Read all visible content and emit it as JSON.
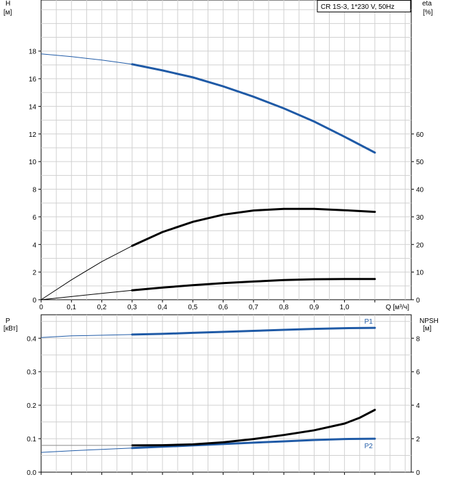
{
  "chart_data": [
    {
      "type": "line",
      "legend": "CR 1S-3, 1*230 V, 50Hz",
      "x_axis": {
        "label": "Q [м³/ч]",
        "ticks": [
          "0",
          "0,1",
          "0,2",
          "0,3",
          "0,4",
          "0,5",
          "0,6",
          "0,7",
          "0,8",
          "0,9",
          "1,0"
        ],
        "range": [
          0,
          1.22
        ]
      },
      "y_left": {
        "label_top": "H",
        "label_unit": "[м]",
        "ticks": [
          "0",
          "2",
          "4",
          "6",
          "8",
          "10",
          "12",
          "14",
          "16",
          "18"
        ],
        "range": [
          0,
          21.7
        ]
      },
      "y_right": {
        "label_top": "eta",
        "label_unit": "[%]",
        "ticks": [
          "0",
          "10",
          "20",
          "30",
          "40",
          "50",
          "60"
        ],
        "range": [
          0,
          108.5
        ]
      },
      "grid": true,
      "series": [
        {
          "axis": "left",
          "color": "#1f5aa6",
          "points": [
            [
              0,
              17.8
            ],
            [
              0.1,
              17.6
            ],
            [
              0.2,
              17.35
            ],
            [
              0.3,
              17.05
            ],
            [
              0.4,
              16.6
            ],
            [
              0.5,
              16.1
            ],
            [
              0.6,
              15.45
            ],
            [
              0.7,
              14.7
            ],
            [
              0.8,
              13.85
            ],
            [
              0.9,
              12.9
            ],
            [
              1.0,
              11.8
            ],
            [
              1.1,
              10.65
            ]
          ],
          "bold_from": 0.3
        },
        {
          "axis": "right",
          "color": "#000000",
          "points": [
            [
              0,
              0
            ],
            [
              0.1,
              7.2
            ],
            [
              0.2,
              13.8
            ],
            [
              0.3,
              19.5
            ],
            [
              0.4,
              24.5
            ],
            [
              0.5,
              28.2
            ],
            [
              0.6,
              30.8
            ],
            [
              0.7,
              32.3
            ],
            [
              0.8,
              32.9
            ],
            [
              0.9,
              32.9
            ],
            [
              1.0,
              32.4
            ],
            [
              1.1,
              31.8
            ]
          ],
          "bold_from": 0.3
        },
        {
          "axis": "left",
          "color": "#000000",
          "points": [
            [
              0,
              0
            ],
            [
              0.1,
              0.23
            ],
            [
              0.2,
              0.46
            ],
            [
              0.3,
              0.68
            ],
            [
              0.4,
              0.88
            ],
            [
              0.5,
              1.05
            ],
            [
              0.6,
              1.2
            ],
            [
              0.7,
              1.32
            ],
            [
              0.8,
              1.42
            ],
            [
              0.9,
              1.48
            ],
            [
              1.0,
              1.5
            ],
            [
              1.1,
              1.5
            ]
          ],
          "bold_from": 0.3
        }
      ]
    },
    {
      "type": "line",
      "x_axis": {
        "ticks": [],
        "range": [
          0,
          1.22
        ]
      },
      "y_left": {
        "label_top": "P",
        "label_unit": "[кВт]",
        "ticks": [
          "0.0",
          "0.1",
          "0.2",
          "0.3",
          "0.4"
        ],
        "range": [
          0,
          0.47
        ]
      },
      "y_right": {
        "label_top": "NPSH",
        "label_unit": "[м]",
        "ticks": [
          "0",
          "2",
          "4",
          "6",
          "8"
        ],
        "range": [
          0,
          9.4
        ]
      },
      "grid": true,
      "series": [
        {
          "name": "P1",
          "axis": "left",
          "color": "#1f5aa6",
          "points": [
            [
              0,
              0.402
            ],
            [
              0.1,
              0.407
            ],
            [
              0.2,
              0.409
            ],
            [
              0.3,
              0.411
            ],
            [
              0.4,
              0.413
            ],
            [
              0.5,
              0.416
            ],
            [
              0.6,
              0.419
            ],
            [
              0.7,
              0.422
            ],
            [
              0.8,
              0.425
            ],
            [
              0.9,
              0.428
            ],
            [
              1.0,
              0.43
            ],
            [
              1.1,
              0.431
            ]
          ],
          "bold_from": 0.3
        },
        {
          "name": "P2",
          "axis": "left",
          "color": "#1f5aa6",
          "points": [
            [
              0,
              0.059
            ],
            [
              0.1,
              0.064
            ],
            [
              0.2,
              0.068
            ],
            [
              0.3,
              0.072
            ],
            [
              0.4,
              0.076
            ],
            [
              0.5,
              0.08
            ],
            [
              0.6,
              0.084
            ],
            [
              0.7,
              0.088
            ],
            [
              0.8,
              0.092
            ],
            [
              0.9,
              0.096
            ],
            [
              1.0,
              0.099
            ],
            [
              1.1,
              0.1
            ]
          ],
          "bold_from": 0.3
        },
        {
          "axis": "right",
          "color": "#000000",
          "points": [
            [
              0.3,
              1.6
            ],
            [
              0.4,
              1.61
            ],
            [
              0.5,
              1.66
            ],
            [
              0.6,
              1.78
            ],
            [
              0.7,
              1.98
            ],
            [
              0.8,
              2.22
            ],
            [
              0.9,
              2.5
            ],
            [
              1.0,
              2.9
            ],
            [
              1.05,
              3.25
            ],
            [
              1.1,
              3.72
            ]
          ],
          "bold_from": 0.3
        },
        {
          "axis": "right",
          "color": "#888888",
          "points": [
            [
              0,
              1.6
            ],
            [
              0.3,
              1.6
            ]
          ],
          "thin": true
        }
      ]
    }
  ]
}
